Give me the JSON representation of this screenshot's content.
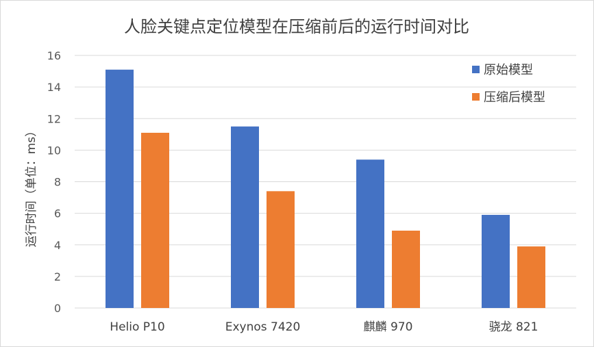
{
  "chart_data": {
    "type": "bar",
    "title": "人脸关键点定位模型在压缩前后的运行时间对比",
    "xlabel": "",
    "ylabel": "运行时间（单位：ms）",
    "categories": [
      "Helio P10",
      "Exynos 7420",
      "麒麟 970",
      "骁龙 821"
    ],
    "series": [
      {
        "name": "原始模型",
        "values": [
          15.1,
          11.5,
          9.4,
          5.9
        ],
        "color": "#4472C4"
      },
      {
        "name": "压缩后模型",
        "values": [
          11.1,
          7.4,
          4.9,
          3.9
        ],
        "color": "#ED7D31"
      }
    ],
    "ylim": [
      0,
      16
    ],
    "yticks": [
      0,
      2,
      4,
      6,
      8,
      10,
      12,
      14,
      16
    ],
    "grid": true,
    "legend_position": "top-right"
  }
}
